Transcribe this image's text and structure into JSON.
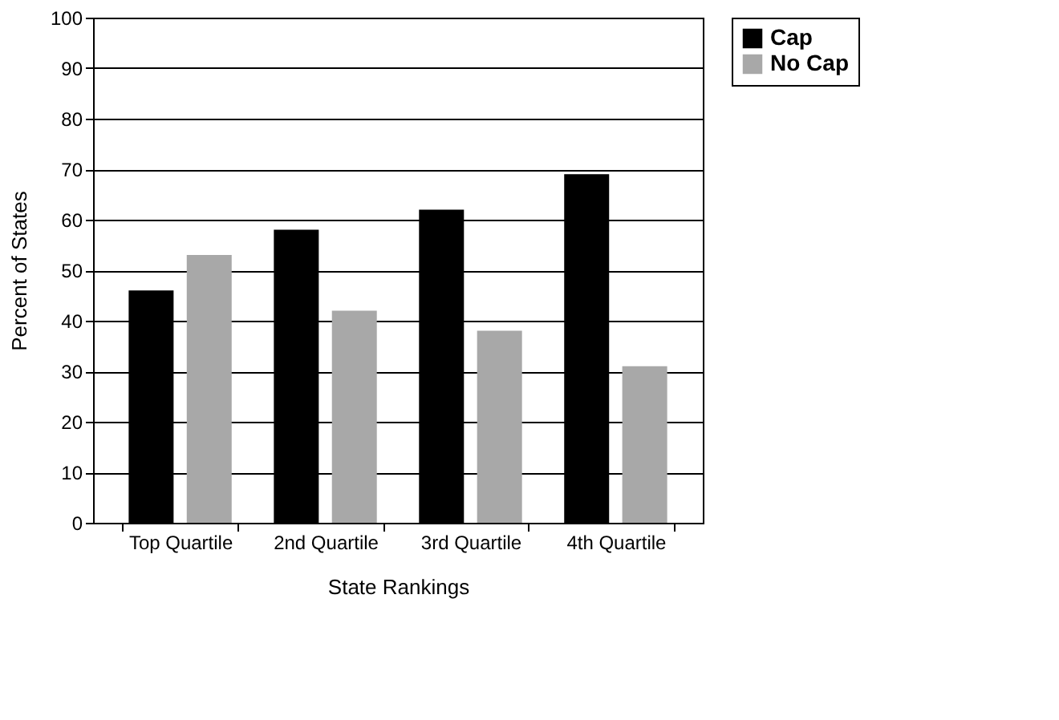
{
  "chart_data": {
    "type": "bar",
    "xlabel": "State Rankings",
    "ylabel": "Percent of States",
    "categories": [
      "Top Quartile",
      "2nd Quartile",
      "3rd Quartile",
      "4th Quartile"
    ],
    "series": [
      {
        "name": "Cap",
        "color": "#000000",
        "values": [
          46,
          58,
          62,
          69
        ]
      },
      {
        "name": "No Cap",
        "color": "#a8a8a8",
        "values": [
          53,
          42,
          38,
          31
        ]
      }
    ],
    "ylim": [
      0,
      100
    ],
    "yticks": [
      0,
      10,
      20,
      30,
      40,
      50,
      60,
      70,
      80,
      90,
      100
    ],
    "grid": "y",
    "legend": "right"
  }
}
